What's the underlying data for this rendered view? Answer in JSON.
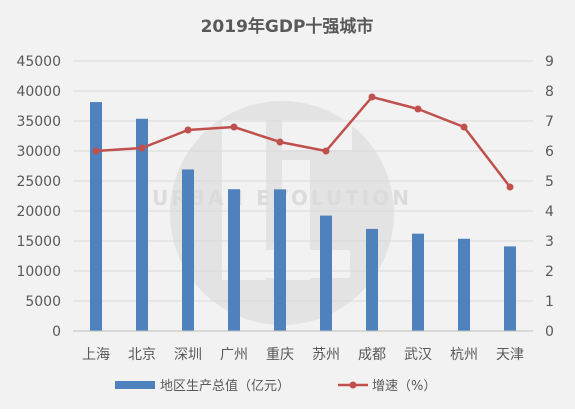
{
  "chart_data": {
    "type": "bar-line-combo",
    "title": "2019年GDP十强城市",
    "categories": [
      "上海",
      "北京",
      "深圳",
      "广州",
      "重庆",
      "苏州",
      "成都",
      "武汉",
      "杭州",
      "天津"
    ],
    "series": [
      {
        "name": "地区生产总值（亿元）",
        "type": "bar",
        "axis": "left",
        "color": "#4f81bd",
        "values": [
          38155,
          35371,
          26927,
          23628,
          23605,
          19236,
          17013,
          16223,
          15373,
          14104
        ]
      },
      {
        "name": "增速（%）",
        "type": "line",
        "axis": "right",
        "color": "#c0504d",
        "values": [
          6.0,
          6.1,
          6.7,
          6.8,
          6.3,
          6.0,
          7.8,
          7.4,
          6.8,
          4.8
        ]
      }
    ],
    "y_left": {
      "min": 0,
      "max": 45000,
      "step": 5000,
      "ticks": [
        "0",
        "5000",
        "10000",
        "15000",
        "20000",
        "25000",
        "30000",
        "35000",
        "40000",
        "45000"
      ]
    },
    "y_right": {
      "min": 0,
      "max": 9,
      "step": 1,
      "ticks": [
        "0",
        "1",
        "2",
        "3",
        "4",
        "5",
        "6",
        "7",
        "8",
        "9"
      ]
    },
    "grid": true,
    "legend": "bottom",
    "watermark": "URBAN EVOLUTION"
  }
}
